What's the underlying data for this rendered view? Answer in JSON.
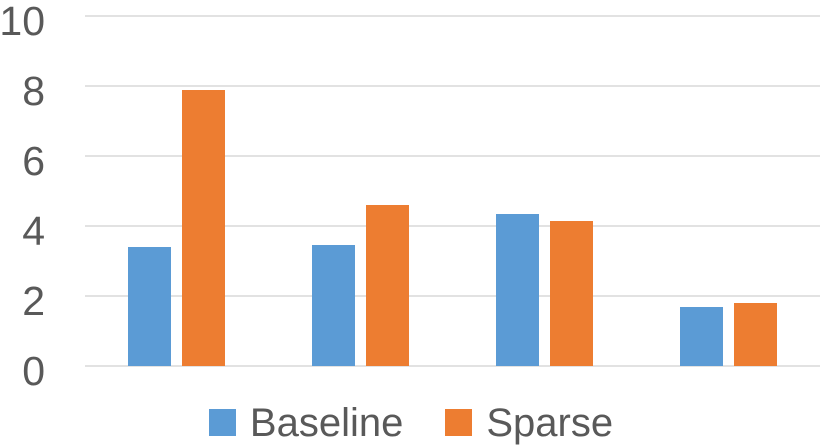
{
  "chart_data": {
    "type": "bar",
    "categories": [
      "",
      "",
      "",
      ""
    ],
    "series": [
      {
        "name": "Baseline",
        "color": "#5B9BD5",
        "values": [
          3.4,
          3.45,
          4.35,
          1.7
        ]
      },
      {
        "name": "Sparse",
        "color": "#ED7D31",
        "values": [
          7.9,
          4.6,
          4.15,
          1.8
        ]
      }
    ],
    "title": "",
    "xlabel": "",
    "ylabel": "",
    "ylim": [
      0,
      10
    ],
    "yticks": [
      "0",
      "2",
      "4",
      "6",
      "8",
      "10"
    ],
    "grid": true,
    "legend_position": "bottom"
  },
  "colors": {
    "axis_text": "#595959",
    "gridline": "#E2E2E2",
    "background": "#FFFFFF"
  }
}
